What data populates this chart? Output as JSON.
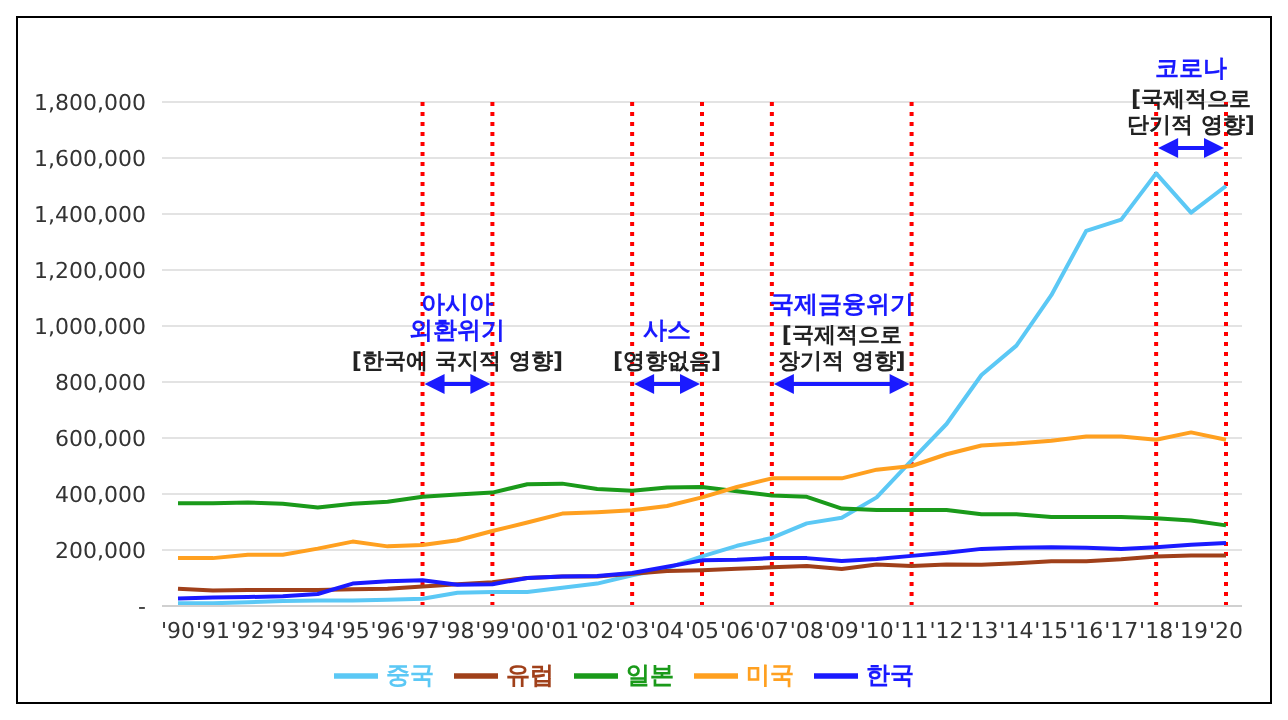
{
  "chart_data": {
    "type": "line",
    "categories": [
      "'90",
      "'91",
      "'92",
      "'93",
      "'94",
      "'95",
      "'96",
      "'97",
      "'98",
      "'99",
      "'00",
      "'01",
      "'02",
      "'03",
      "'04",
      "'05",
      "'06",
      "'07",
      "'08",
      "'09",
      "'10",
      "'11",
      "'12",
      "'13",
      "'14",
      "'15",
      "'16",
      "'17",
      "'18",
      "'19",
      "'20"
    ],
    "series": [
      {
        "name": "중국",
        "color": "#5bc8f5",
        "values": [
          10000,
          10000,
          13000,
          18000,
          20000,
          20000,
          22000,
          26000,
          47000,
          50000,
          50000,
          65000,
          80000,
          110000,
          135000,
          177000,
          215000,
          243000,
          295000,
          315000,
          388000,
          520000,
          650000,
          825000,
          930000,
          1110000,
          1340000,
          1380000,
          1545000,
          1405000,
          1500000
        ]
      },
      {
        "name": "유럽",
        "color": "#a0401a",
        "values": [
          62000,
          55000,
          57000,
          57000,
          57000,
          60000,
          62000,
          70000,
          78000,
          85000,
          100000,
          105000,
          105000,
          115000,
          125000,
          128000,
          133000,
          138000,
          143000,
          132000,
          148000,
          143000,
          148000,
          147000,
          153000,
          160000,
          160000,
          167000,
          177000,
          180000,
          180000
        ]
      },
      {
        "name": "일본",
        "color": "#1a9a1a",
        "values": [
          367000,
          367000,
          370000,
          365000,
          352000,
          365000,
          372000,
          390000,
          398000,
          405000,
          435000,
          437000,
          418000,
          412000,
          423000,
          425000,
          410000,
          395000,
          390000,
          348000,
          343000,
          343000,
          343000,
          328000,
          328000,
          318000,
          318000,
          318000,
          313000,
          305000,
          288000
        ]
      },
      {
        "name": "미국",
        "color": "#ffa020",
        "values": [
          171000,
          171000,
          183000,
          183000,
          205000,
          230000,
          213000,
          218000,
          235000,
          268000,
          298000,
          330000,
          335000,
          342000,
          357000,
          388000,
          425000,
          456000,
          456000,
          456000,
          487000,
          500000,
          542000,
          573000,
          580000,
          590000,
          605000,
          605000,
          594000,
          620000,
          594000
        ]
      },
      {
        "name": "한국",
        "color": "#1a1aff",
        "values": [
          27000,
          30000,
          32000,
          35000,
          43000,
          80000,
          88000,
          92000,
          76000,
          78000,
          100000,
          105000,
          107000,
          118000,
          140000,
          163000,
          165000,
          171000,
          171000,
          161000,
          168000,
          179000,
          190000,
          204000,
          208000,
          210000,
          208000,
          204000,
          210000,
          219000,
          225000
        ]
      }
    ],
    "ylim": [
      0,
      1800000
    ],
    "yticks": [
      {
        "value": 0,
        "label": "-"
      },
      {
        "value": 200000,
        "label": "200,000"
      },
      {
        "value": 400000,
        "label": "400,000"
      },
      {
        "value": 600000,
        "label": "600,000"
      },
      {
        "value": 800000,
        "label": "800,000"
      },
      {
        "value": 1000000,
        "label": "1,000,000"
      },
      {
        "value": 1200000,
        "label": "1,200,000"
      },
      {
        "value": 1400000,
        "label": "1,400,000"
      },
      {
        "value": 1600000,
        "label": "1,600,000"
      },
      {
        "value": 1800000,
        "label": "1,800,000"
      }
    ],
    "grid": "y",
    "legend": "bottom",
    "marker": "none",
    "line_style": "solid",
    "ref_lines": [
      {
        "axis": "x",
        "value": "'97",
        "color": "#ff0000",
        "line_style": "dotted"
      },
      {
        "axis": "x",
        "value": "'99",
        "color": "#ff0000",
        "line_style": "dotted"
      },
      {
        "axis": "x",
        "value": "'03",
        "color": "#ff0000",
        "line_style": "dotted"
      },
      {
        "axis": "x",
        "value": "'05",
        "color": "#ff0000",
        "line_style": "dotted"
      },
      {
        "axis": "x",
        "value": "'07",
        "color": "#ff0000",
        "line_style": "dotted"
      },
      {
        "axis": "x",
        "value": "'11",
        "color": "#ff0000",
        "line_style": "dotted"
      },
      {
        "axis": "x",
        "value": "'18",
        "color": "#ff0000",
        "line_style": "dotted"
      },
      {
        "axis": "x",
        "value": "'20",
        "color": "#ff0000",
        "line_style": "dotted"
      }
    ],
    "annotations": [
      "아시아\n외환위기",
      "[한국에 국지적 영향]",
      "사스",
      "[영향없음]",
      "국제금융위기",
      "[국제적으로\n장기적 영향]",
      "코로나",
      "[국제적으로\n단기적 영향]"
    ]
  }
}
